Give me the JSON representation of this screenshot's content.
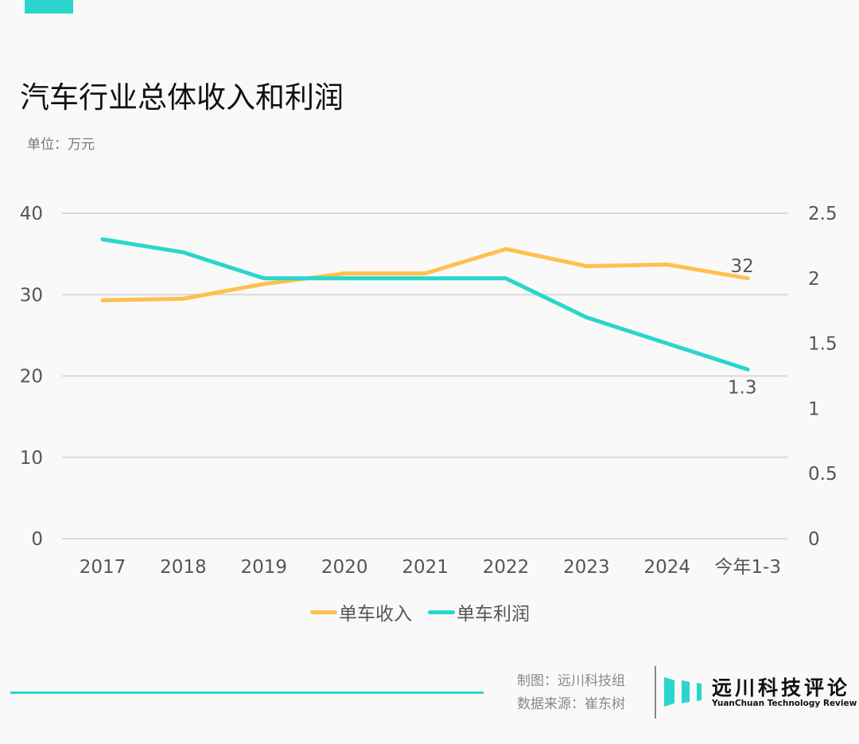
{
  "colors": {
    "accent": "#2ad6cc",
    "revenue": "#ffc04d",
    "profit": "#2ad6cc",
    "grid": "#d9d9d9",
    "background": "#f9f9f9"
  },
  "header": {
    "title": "汽车行业总体收入和利润",
    "unit": "单位：万元"
  },
  "footer": {
    "credit_line1": "制图：远川科技组",
    "credit_line2": "数据来源：崔东树",
    "logo_cn": "远川科技评论",
    "logo_en": "YuanChuan Technology Review"
  },
  "chart_data": {
    "type": "line",
    "title": "汽车行业总体收入和利润",
    "subtitle": "单位：万元",
    "xlabel": "",
    "ylabel": "",
    "categories": [
      "2017",
      "2018",
      "2019",
      "2020",
      "2021",
      "2022",
      "2023",
      "2024",
      "今年1-3"
    ],
    "y_left": {
      "range": [
        0,
        40
      ],
      "ticks": [
        "0",
        "10",
        "20",
        "30",
        "40"
      ],
      "tick_values": [
        0,
        10,
        20,
        30,
        40
      ]
    },
    "y_right": {
      "range": [
        0,
        2.5
      ],
      "ticks": [
        "0",
        "0.5",
        "1",
        "1.5",
        "2",
        "2.5"
      ],
      "tick_values": [
        0,
        0.5,
        1,
        1.5,
        2,
        2.5
      ]
    },
    "grid": true,
    "legend_position": "bottom",
    "series": [
      {
        "name": "单车收入",
        "axis": "left",
        "color": "#ffc04d",
        "values": [
          29.3,
          29.5,
          31.3,
          32.6,
          32.6,
          35.6,
          33.5,
          33.7,
          32
        ],
        "end_label": "32"
      },
      {
        "name": "单车利润",
        "axis": "right",
        "color": "#2ad6cc",
        "values": [
          2.3,
          2.2,
          2.0,
          2.0,
          2.0,
          2.0,
          1.7,
          1.5,
          1.3
        ],
        "end_label": "1.3"
      }
    ]
  }
}
